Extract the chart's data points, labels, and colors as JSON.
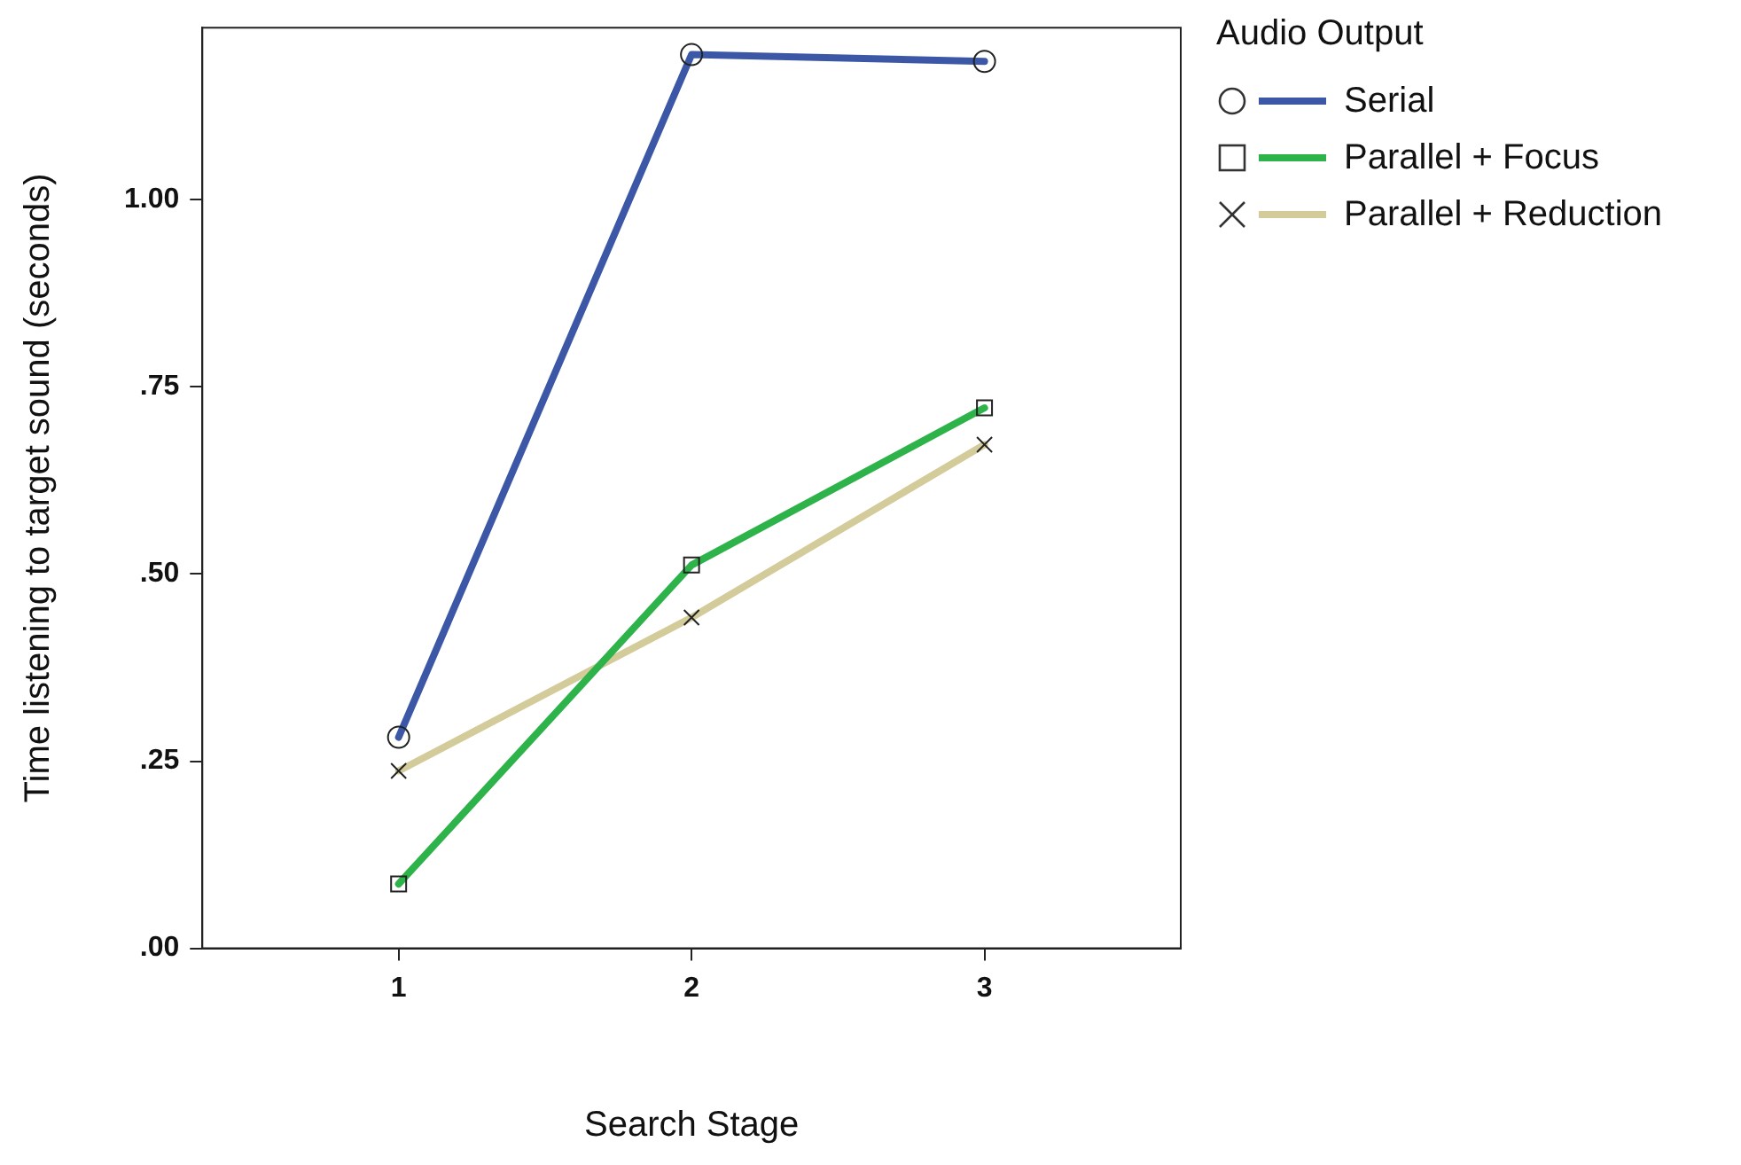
{
  "chart_data": {
    "type": "line",
    "xlabel": "Search Stage",
    "ylabel": "Time listening to target sound (seconds)",
    "legend_title": "Audio Output",
    "legend": "right",
    "grid": false,
    "x": [
      1,
      2,
      3
    ],
    "xlim": [
      0.33,
      3.67
    ],
    "xticks": [
      1,
      2,
      3
    ],
    "ylim": [
      0,
      1.23
    ],
    "yticks": [
      {
        "value": 0,
        "label": ".00"
      },
      {
        "value": 0.25,
        "label": ".25"
      },
      {
        "value": 0.5,
        "label": ".50"
      },
      {
        "value": 0.75,
        "label": ".75"
      },
      {
        "value": 1,
        "label": "1.00"
      }
    ],
    "series": [
      {
        "name": "Serial",
        "color": "#3b57a6",
        "marker": "circle",
        "values": [
          0.282,
          1.194,
          1.185
        ]
      },
      {
        "name": "Parallel + Focus",
        "color": "#2db34a",
        "marker": "square",
        "values": [
          0.086,
          0.512,
          0.722
        ]
      },
      {
        "name": "Parallel + Reduction",
        "color": "#d3cb9a",
        "marker": "cross",
        "values": [
          0.237,
          0.442,
          0.673
        ]
      }
    ]
  }
}
